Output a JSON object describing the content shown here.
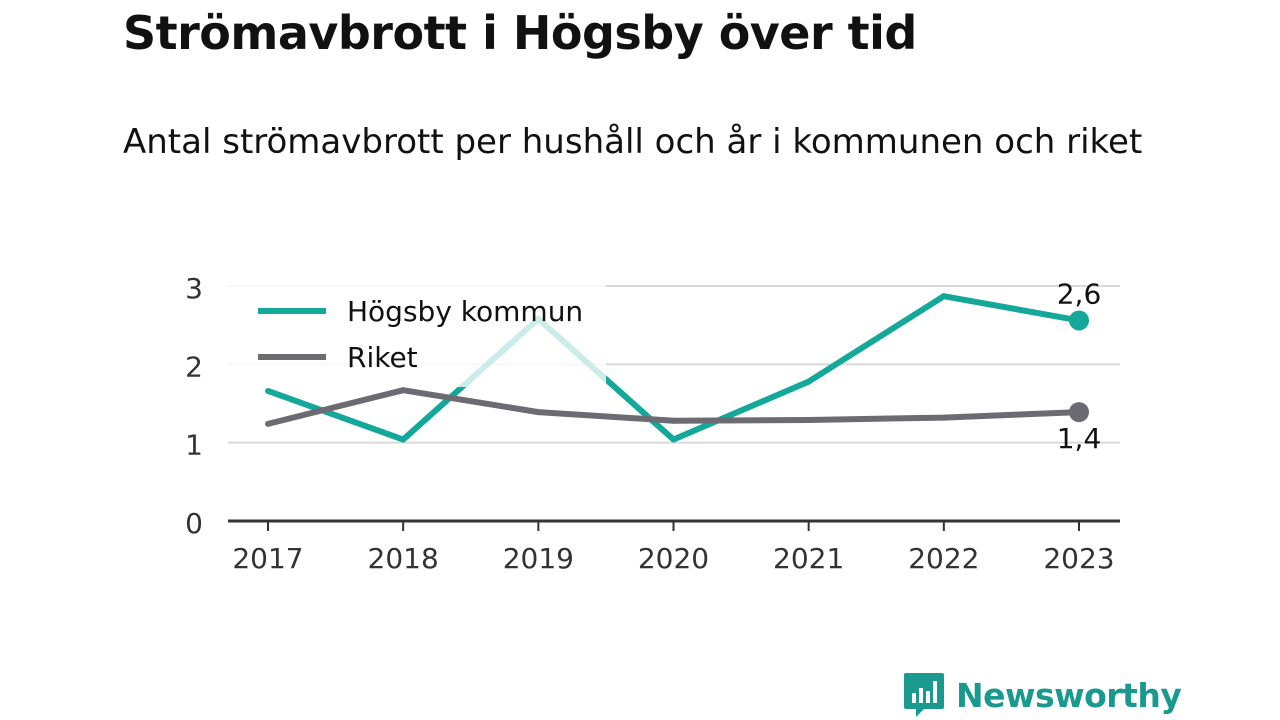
{
  "header": {
    "title": "Strömavbrott i Högsby över tid",
    "subtitle": "Antal strömavbrott per hushåll och år i kommunen och riket"
  },
  "brand": {
    "name": "Newsworthy",
    "color": "#1a9a8e"
  },
  "chart_data": {
    "type": "line",
    "x": [
      "2017",
      "2018",
      "2019",
      "2020",
      "2021",
      "2022",
      "2023"
    ],
    "ylim": [
      0,
      3
    ],
    "yticks": [
      "0",
      "1",
      "2",
      "3"
    ],
    "grid": true,
    "legend_position": "top-left",
    "series": [
      {
        "name": "Högsby kommun",
        "color": "#14a89a",
        "values": [
          1.66,
          1.04,
          2.58,
          1.04,
          1.78,
          2.87,
          2.56
        ],
        "end_label": "2,6"
      },
      {
        "name": "Riket",
        "color": "#6d6b72",
        "values": [
          1.24,
          1.67,
          1.39,
          1.28,
          1.29,
          1.32,
          1.39
        ],
        "end_label": "1,4"
      }
    ]
  }
}
